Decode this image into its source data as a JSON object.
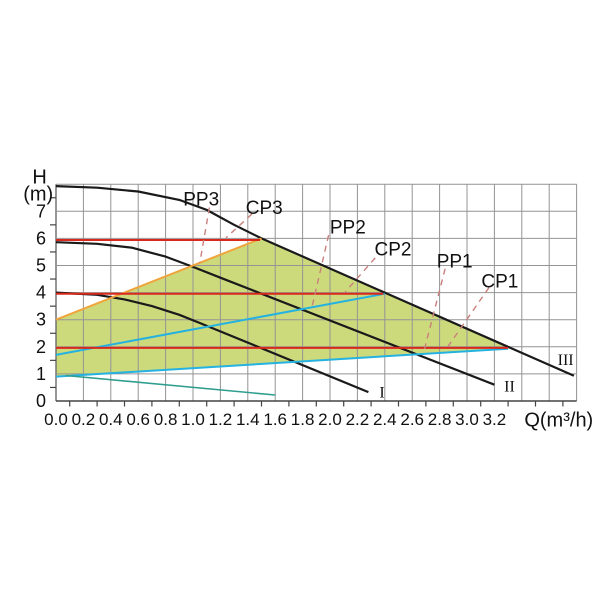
{
  "page": {
    "background": "#ffffff"
  },
  "chart_data": {
    "type": "line",
    "title": "",
    "xlabel": "Q(m³/h)",
    "ylabel_line1": "H",
    "ylabel_line2": "(m)",
    "x_axis": {
      "min": 0,
      "max": 3.8,
      "grid_step": 0.2,
      "tick_labels": [
        "0.0",
        "0.2",
        "0.4",
        "0.6",
        "0.8",
        "1.0",
        "1.2",
        "1.4",
        "1.6",
        "1.8",
        "2.0",
        "2.2",
        "2.4",
        "2.6",
        "2.8",
        "3.0",
        "3.2"
      ],
      "tick_step": 0.2,
      "minor_tick_start": 0.1,
      "minor_tick_step": 0.2
    },
    "y_axis": {
      "min": 0,
      "max": 8,
      "grid_step": 1,
      "tick_labels": [
        "0",
        "1",
        "2",
        "3",
        "4",
        "5",
        "6",
        "7"
      ],
      "tick_step": 1,
      "minor_tick_start": 0.5,
      "minor_tick_step": 1
    },
    "grid_on": true,
    "grid_color": "#949494",
    "axis_color": "#444444",
    "operating_area": {
      "name": "operating-area",
      "fill": "#ccda7c",
      "points": [
        [
          0,
          0.9
        ],
        [
          0,
          3.0
        ],
        [
          1.5,
          6.0
        ],
        [
          3.3,
          1.96
        ]
      ]
    },
    "series": [
      {
        "name": "speed-curve-iii",
        "label": "III",
        "color": "#1a1a1a",
        "width": 2.2,
        "points": [
          [
            0,
            7.93
          ],
          [
            0.3,
            7.87
          ],
          [
            0.6,
            7.73
          ],
          [
            0.9,
            7.42
          ],
          [
            1.1,
            7.05
          ],
          [
            1.3,
            6.5
          ],
          [
            1.5,
            6.0
          ],
          [
            3.78,
            0.93
          ]
        ]
      },
      {
        "name": "speed-curve-ii",
        "label": "II",
        "color": "#1a1a1a",
        "width": 2.2,
        "points": [
          [
            0,
            5.86
          ],
          [
            0.3,
            5.8
          ],
          [
            0.55,
            5.66
          ],
          [
            0.8,
            5.33
          ],
          [
            1.0,
            4.95
          ],
          [
            1.2,
            4.55
          ],
          [
            3.2,
            0.6
          ]
        ]
      },
      {
        "name": "speed-curve-i",
        "label": "I",
        "color": "#1a1a1a",
        "width": 2.2,
        "points": [
          [
            0,
            4.0
          ],
          [
            0.3,
            3.92
          ],
          [
            0.5,
            3.75
          ],
          [
            0.7,
            3.5
          ],
          [
            0.9,
            3.18
          ],
          [
            1.05,
            2.88
          ],
          [
            2.28,
            0.33
          ]
        ]
      },
      {
        "name": "pp3-proportional-pressure-line",
        "label": "PP3",
        "color": "#f0a43c",
        "width": 2,
        "points": [
          [
            0,
            3.0
          ],
          [
            1.5,
            6.0
          ]
        ]
      },
      {
        "name": "pp2-proportional-pressure-line",
        "label": "PP2",
        "color": "#25b2e0",
        "width": 2,
        "points": [
          [
            0,
            1.7
          ],
          [
            2.4,
            3.96
          ]
        ]
      },
      {
        "name": "pp1-proportional-pressure-line",
        "label": "PP1",
        "color": "#25b2e0",
        "width": 2,
        "points": [
          [
            0,
            0.9
          ],
          [
            3.3,
            1.93
          ]
        ]
      },
      {
        "name": "lower-limit-curve",
        "label": "",
        "color": "#2f9e8f",
        "width": 1.6,
        "points": [
          [
            0.07,
            0.94
          ],
          [
            1.6,
            0.22
          ]
        ]
      },
      {
        "name": "cp3-constant-pressure-line",
        "label": "CP3",
        "color": "#d9291c",
        "width": 2,
        "points": [
          [
            0,
            5.94
          ],
          [
            1.49,
            5.94
          ]
        ]
      },
      {
        "name": "cp2-constant-pressure-line",
        "label": "CP2",
        "color": "#d9291c",
        "width": 2,
        "points": [
          [
            0,
            3.96
          ],
          [
            2.39,
            3.96
          ]
        ]
      },
      {
        "name": "cp1-constant-pressure-line",
        "label": "CP1",
        "color": "#d9291c",
        "width": 2,
        "points": [
          [
            0,
            1.96
          ],
          [
            3.3,
            1.96
          ]
        ]
      }
    ],
    "connector_style": {
      "color": "#c9807c",
      "dash": "6 5",
      "width": 1.4
    },
    "connectors": [
      {
        "name": "pp3-label-connector",
        "points": [
          [
            1.12,
            7.14
          ],
          [
            1.05,
            5.1
          ]
        ]
      },
      {
        "name": "cp3-label-connector",
        "points": [
          [
            1.43,
            6.9
          ],
          [
            1.24,
            6.02
          ]
        ]
      },
      {
        "name": "pp2-label-connector",
        "points": [
          [
            1.99,
            6.12
          ],
          [
            1.87,
            3.5
          ]
        ]
      },
      {
        "name": "cp2-label-connector",
        "points": [
          [
            2.33,
            5.28
          ],
          [
            2.11,
            4.02
          ]
        ]
      },
      {
        "name": "pp1-label-connector",
        "points": [
          [
            2.84,
            4.88
          ],
          [
            2.69,
            1.92
          ]
        ]
      },
      {
        "name": "cp1-label-connector",
        "points": [
          [
            3.16,
            4.18
          ],
          [
            2.86,
            2.0
          ]
        ]
      }
    ],
    "curve_labels": [
      {
        "id": "label-pp3",
        "text": "PP3",
        "x": 1.06,
        "y": 7.42,
        "size": 19,
        "serif": false
      },
      {
        "id": "label-cp3",
        "text": "CP3",
        "x": 1.52,
        "y": 7.1,
        "size": 19,
        "serif": false
      },
      {
        "id": "label-pp2",
        "text": "PP2",
        "x": 2.13,
        "y": 6.38,
        "size": 19,
        "serif": false
      },
      {
        "id": "label-cp2",
        "text": "CP2",
        "x": 2.46,
        "y": 5.57,
        "size": 19,
        "serif": false
      },
      {
        "id": "label-pp1",
        "text": "PP1",
        "x": 2.91,
        "y": 5.12,
        "size": 19,
        "serif": false
      },
      {
        "id": "label-cp1",
        "text": "CP1",
        "x": 3.24,
        "y": 4.4,
        "size": 19,
        "serif": false
      },
      {
        "id": "label-curve-i",
        "text": "I",
        "x": 2.38,
        "y": 0.3,
        "size": 16,
        "serif": true
      },
      {
        "id": "label-curve-ii",
        "text": "II",
        "x": 3.31,
        "y": 0.52,
        "size": 16,
        "serif": true
      },
      {
        "id": "label-curve-iii",
        "text": "III",
        "x": 3.72,
        "y": 1.5,
        "size": 16,
        "serif": true
      }
    ],
    "axis_titles": [
      {
        "id": "y-axis-title-h",
        "text": "H",
        "x": -0.12,
        "y": 8.25,
        "size": 20
      },
      {
        "id": "y-axis-title-m",
        "text": "(m)",
        "x": -0.13,
        "y": 7.62,
        "size": 20
      },
      {
        "id": "x-axis-title-q",
        "text": "Q(m³/h)",
        "x": 3.67,
        "y": -0.72,
        "size": 20
      }
    ]
  }
}
